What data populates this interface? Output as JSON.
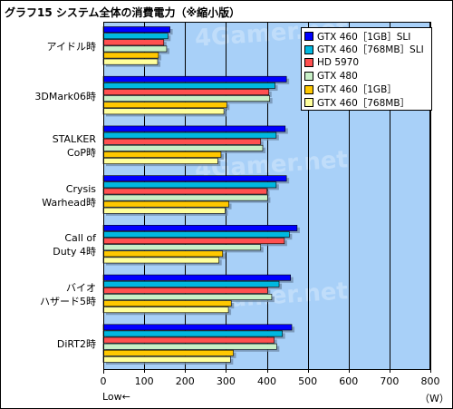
{
  "page": {
    "title": "グラフ15  システム全体の消費電力（※縮小版）"
  },
  "chart_data": {
    "type": "bar",
    "orientation": "horizontal",
    "categories": [
      "アイドル時",
      "3DMark06時",
      "STALKER\nCoP時",
      "Crysis\nWarhead時",
      "Call of\nDuty 4時",
      "バイオ\nハザード5時",
      "DiRT2時"
    ],
    "series": [
      {
        "name": "GTX 460［1GB］SLI",
        "color": "#0000FF",
        "values": [
          163,
          448,
          445,
          448,
          474,
          458,
          461
        ]
      },
      {
        "name": "GTX 460［768MB］SLI",
        "color": "#00B8E0",
        "values": [
          158,
          420,
          423,
          423,
          455,
          430,
          438
        ]
      },
      {
        "name": "HD 5970",
        "color": "#FF5050",
        "values": [
          148,
          405,
          385,
          400,
          443,
          402,
          418
        ]
      },
      {
        "name": "GTX 480",
        "color": "#C8F0C8",
        "values": [
          155,
          407,
          390,
          402,
          385,
          412,
          424
        ]
      },
      {
        "name": "GTX 460［1GB］",
        "color": "#FFC800",
        "values": [
          135,
          302,
          288,
          307,
          292,
          313,
          318
        ]
      },
      {
        "name": "GTX 460［768MB］",
        "color": "#FFFF9C",
        "values": [
          133,
          295,
          280,
          298,
          283,
          306,
          311
        ]
      }
    ],
    "xlim": [
      0,
      800
    ],
    "xticks": [
      0,
      100,
      200,
      300,
      400,
      500,
      600,
      700,
      800
    ],
    "xlabel_left": "Low←",
    "xlabel_unit": "（W）",
    "watermark": "4Gamer.net",
    "colors": {
      "plot_bg": "#A8D0F8",
      "grid": "#000000"
    },
    "grid": true,
    "legend_position": "top-right"
  }
}
